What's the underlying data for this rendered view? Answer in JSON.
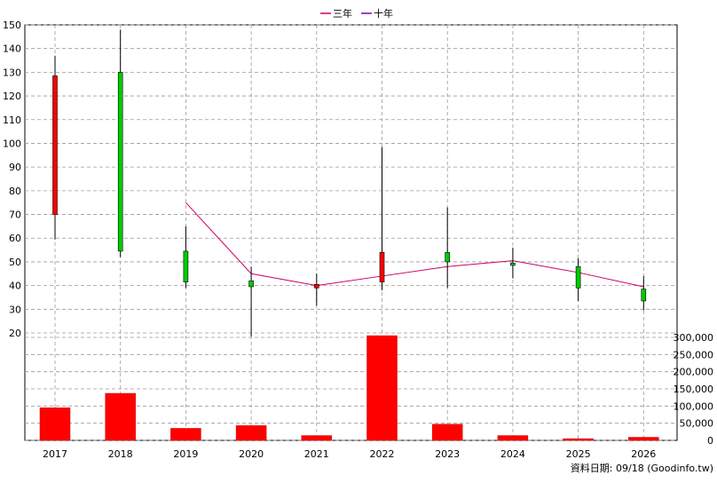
{
  "chart_data": {
    "type": "candlestick",
    "categories": [
      "2017",
      "2018",
      "2019",
      "2020",
      "2021",
      "2022",
      "2023",
      "2024",
      "2025",
      "2026"
    ],
    "legend": [
      {
        "name": "三年",
        "color": "#cc0066"
      },
      {
        "name": "十年",
        "color": "#8000c0"
      }
    ],
    "price_axis": {
      "ticks": [
        "150",
        "140",
        "130",
        "120",
        "110",
        "100",
        "90",
        "80",
        "70",
        "60",
        "50",
        "40",
        "30",
        "20"
      ],
      "range": [
        20,
        150
      ]
    },
    "volume_axis": {
      "ticks": [
        "300,000",
        "250,000",
        "200,000",
        "150,000",
        "100,000",
        "50,000",
        "0"
      ],
      "range": [
        0,
        300000
      ]
    },
    "candles": [
      {
        "x": "2017",
        "open": 70,
        "high": 137,
        "low": 59.5,
        "close": 128.5,
        "color": "#ff0000"
      },
      {
        "x": "2018",
        "open": 130,
        "high": 148,
        "low": 52,
        "close": 54.5,
        "color": "#00cc00"
      },
      {
        "x": "2019",
        "open": 54.5,
        "high": 65,
        "low": 39,
        "close": 41.5,
        "color": "#00cc00"
      },
      {
        "x": "2020",
        "open": 42,
        "high": 48,
        "low": 18.5,
        "close": 39.5,
        "color": "#00cc00"
      },
      {
        "x": "2021",
        "open": 39,
        "high": 45,
        "low": 31.5,
        "close": 40.5,
        "color": "#ff0000"
      },
      {
        "x": "2022",
        "open": 41.5,
        "high": 98.5,
        "low": 38,
        "close": 54,
        "color": "#ff0000"
      },
      {
        "x": "2023",
        "open": 54,
        "high": 73,
        "low": 39,
        "close": 50,
        "color": "#00cc00"
      },
      {
        "x": "2024",
        "open": 49.5,
        "high": 56,
        "low": 43,
        "close": 48.5,
        "color": "#00cc00"
      },
      {
        "x": "2025",
        "open": 48,
        "high": 51.5,
        "low": 33.5,
        "close": 39,
        "color": "#00cc00"
      },
      {
        "x": "2026",
        "open": 38.5,
        "high": 44,
        "low": 29.5,
        "close": 33.5,
        "color": "#00cc00"
      }
    ],
    "series": [
      {
        "name": "三年",
        "color": "#cc0066",
        "points": [
          {
            "x": "2019",
            "y": 75
          },
          {
            "x": "2020",
            "y": 45
          },
          {
            "x": "2021",
            "y": 40
          },
          {
            "x": "2022",
            "y": 44
          },
          {
            "x": "2023",
            "y": 48
          },
          {
            "x": "2024",
            "y": 50.5
          },
          {
            "x": "2025",
            "y": 45.5
          },
          {
            "x": "2026",
            "y": 39.5
          }
        ]
      }
    ],
    "volume": [
      {
        "x": "2017",
        "value": 95000
      },
      {
        "x": "2018",
        "value": 137000
      },
      {
        "x": "2019",
        "value": 35000
      },
      {
        "x": "2020",
        "value": 43000
      },
      {
        "x": "2021",
        "value": 14000
      },
      {
        "x": "2022",
        "value": 305000
      },
      {
        "x": "2023",
        "value": 47000
      },
      {
        "x": "2024",
        "value": 14000
      },
      {
        "x": "2025",
        "value": 5000
      },
      {
        "x": "2026",
        "value": 9000
      }
    ],
    "volume_color": "#ff0000",
    "grid": true
  },
  "footer": "資料日期: 09/18  (Goodinfo.tw)"
}
